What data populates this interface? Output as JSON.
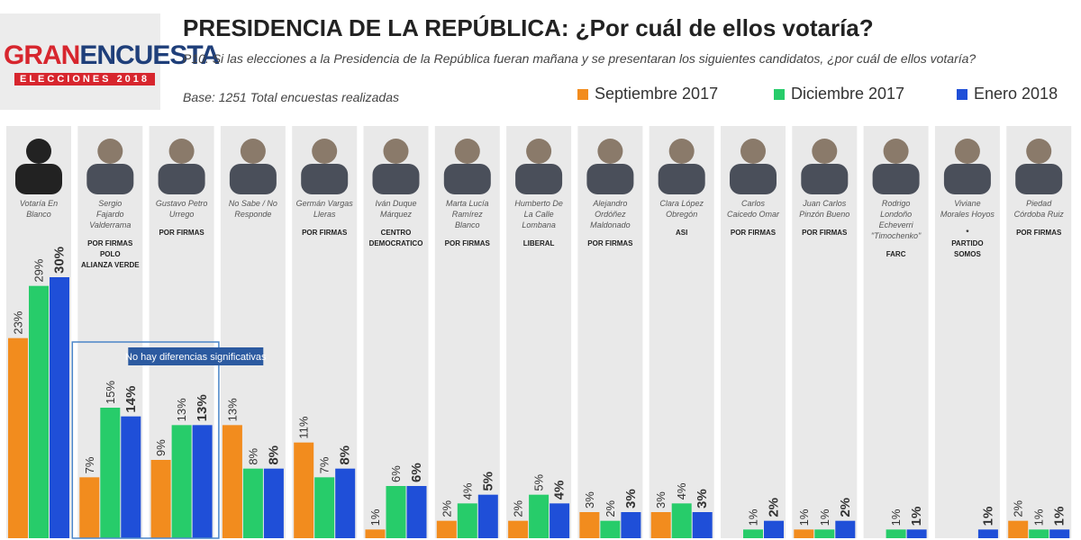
{
  "header": {
    "logo_gran": "GRAN",
    "logo_encuesta": "ENCUESTA",
    "logo_sub": "ELECCIONES 2018",
    "title": "PRESIDENCIA DE LA REPÚBLICA: ¿Por cuál de ellos votaría?",
    "question": "P10. Si las elecciones a la Presidencia de la República fueran mañana y se presentaran los siguientes candidatos, ¿por cuál de ellos votaría?",
    "base": "Base: 1251 Total encuestas realizadas"
  },
  "chart_data": {
    "type": "bar",
    "title": "PRESIDENCIA DE LA REPÚBLICA: ¿Por cuál de ellos votaría?",
    "xlabel": "",
    "ylabel": "",
    "ylim": [
      0,
      30
    ],
    "grid": false,
    "legend_position": "top-right",
    "categories": [
      "Votaría En Blanco",
      "Sergio Fajardo Valderrama",
      "Gustavo Petro Urrego",
      "No Sabe / No Responde",
      "Germán Vargas Lleras",
      "Iván Duque Márquez",
      "Marta Lucía Ramírez Blanco",
      "Humberto De La Calle Lombana",
      "Alejandro Ordóñez Maldonado",
      "Clara López Obregón",
      "Carlos Caicedo Omar",
      "Juan Carlos Pinzón Bueno",
      "Rodrigo Londoño Echeverri \"Timochenko\"",
      "Viviane Morales Hoyos",
      "Piedad Córdoba Ruiz"
    ],
    "parties": [
      [],
      [
        "POR FIRMAS",
        "POLO",
        "ALIANZA VERDE"
      ],
      [
        "POR FIRMAS"
      ],
      [],
      [
        "POR FIRMAS"
      ],
      [
        "CENTRO",
        "DEMOCRATICO"
      ],
      [
        "POR FIRMAS"
      ],
      [
        "LIBERAL"
      ],
      [
        "POR FIRMAS"
      ],
      [
        "ASI"
      ],
      [
        "POR FIRMAS"
      ],
      [
        "POR FIRMAS"
      ],
      [
        "FARC"
      ],
      [
        "*",
        "PARTIDO",
        "SOMOS"
      ],
      [
        "POR FIRMAS"
      ]
    ],
    "series": [
      {
        "name": "Septiembre 2017",
        "color": "#f28c1e",
        "values": [
          23,
          7,
          9,
          13,
          11,
          1,
          2,
          2,
          3,
          3,
          null,
          1,
          null,
          null,
          2
        ]
      },
      {
        "name": "Diciembre 2017",
        "color": "#27cc6a",
        "values": [
          29,
          15,
          13,
          8,
          7,
          6,
          4,
          5,
          2,
          4,
          1,
          1,
          1,
          null,
          1
        ]
      },
      {
        "name": "Enero 2018",
        "color": "#1f4fd8",
        "values": [
          30,
          14,
          13,
          8,
          8,
          6,
          5,
          4,
          3,
          3,
          2,
          2,
          1,
          1,
          1
        ]
      }
    ],
    "annotation": "No hay diferencias significativas"
  }
}
